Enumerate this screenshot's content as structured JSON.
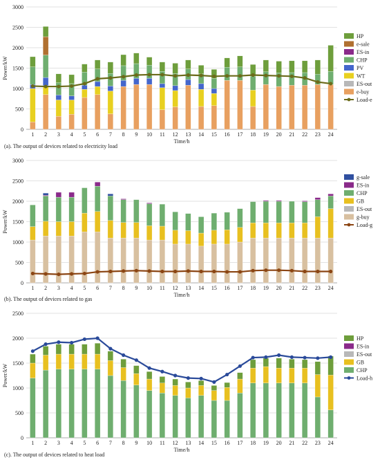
{
  "colors": {
    "HP": "#6e9e3c",
    "e-sale": "#b07030",
    "ES-in": "#8a2a8a",
    "CHP": "#6fae6f",
    "PV": "#4466cc",
    "WT": "#e8d020",
    "ES-out": "#b8b8b8",
    "e-buy": "#e8a060",
    "g-sale": "#3050a0",
    "GB": "#e8c020",
    "g-buy": "#d8c0a0",
    "load-e": "#6b6b1a",
    "load-g": "#8b4513",
    "load-h": "#2a4a9a"
  },
  "chart_data": [
    {
      "type": "bar",
      "caption": "(a). The output of devices related to electricity load",
      "xlabel": "Time/h",
      "ylabel": "Power/kW",
      "ylim": [
        0,
        3000
      ],
      "yticks": [
        0,
        500,
        1000,
        1500,
        2000,
        2500,
        3000
      ],
      "categories": [
        "1",
        "2",
        "3",
        "4",
        "5",
        "6",
        "7",
        "8",
        "9",
        "10",
        "11",
        "12",
        "13",
        "14",
        "15",
        "16",
        "17",
        "18",
        "19",
        "20",
        "21",
        "22",
        "23",
        "24"
      ],
      "legend_position": "right",
      "legend": [
        "HP",
        "e-sale",
        "ES-in",
        "CHP",
        "PV",
        "WT",
        "ES-out",
        "e-buy",
        "Load-e"
      ],
      "series": [
        {
          "name": "e-buy",
          "values": [
            180,
            850,
            320,
            370,
            780,
            850,
            380,
            1050,
            1100,
            1100,
            480,
            550,
            1080,
            560,
            580,
            1200,
            1200,
            560,
            1100,
            1050,
            1080,
            1080,
            1100,
            1100
          ]
        },
        {
          "name": "ES-out",
          "values": [
            0,
            0,
            0,
            0,
            0,
            0,
            0,
            0,
            0,
            0,
            0,
            0,
            0,
            0,
            0,
            0,
            0,
            0,
            0,
            0,
            0,
            0,
            0,
            0
          ]
        },
        {
          "name": "WT",
          "values": [
            820,
            220,
            400,
            350,
            200,
            200,
            560,
            0,
            0,
            0,
            540,
            400,
            0,
            420,
            300,
            0,
            0,
            400,
            0,
            0,
            0,
            0,
            0,
            0
          ]
        },
        {
          "name": "PV",
          "values": [
            100,
            200,
            120,
            100,
            100,
            120,
            120,
            150,
            150,
            150,
            100,
            120,
            140,
            140,
            120,
            0,
            0,
            0,
            0,
            0,
            0,
            0,
            0,
            0
          ]
        },
        {
          "name": "CHP",
          "values": [
            430,
            550,
            300,
            300,
            320,
            310,
            310,
            360,
            360,
            320,
            300,
            300,
            260,
            240,
            250,
            320,
            330,
            340,
            310,
            330,
            310,
            310,
            250,
            320
          ]
        },
        {
          "name": "ES-in",
          "values": [
            0,
            0,
            0,
            0,
            0,
            0,
            0,
            0,
            0,
            0,
            0,
            0,
            0,
            0,
            0,
            0,
            0,
            0,
            0,
            0,
            0,
            0,
            0,
            0
          ]
        },
        {
          "name": "e-sale",
          "values": [
            0,
            450,
            0,
            0,
            0,
            0,
            0,
            0,
            0,
            0,
            0,
            0,
            0,
            0,
            0,
            0,
            0,
            0,
            0,
            0,
            0,
            0,
            0,
            0
          ]
        },
        {
          "name": "HP",
          "values": [
            250,
            250,
            220,
            220,
            200,
            220,
            280,
            270,
            260,
            200,
            230,
            250,
            220,
            210,
            220,
            230,
            270,
            290,
            290,
            290,
            290,
            290,
            350,
            640
          ]
        }
      ],
      "line": {
        "name": "Load-e",
        "values": [
          1060,
          1050,
          1050,
          1060,
          1120,
          1240,
          1260,
          1290,
          1330,
          1340,
          1340,
          1310,
          1330,
          1320,
          1300,
          1310,
          1310,
          1330,
          1320,
          1310,
          1300,
          1260,
          1160,
          1120
        ]
      }
    },
    {
      "type": "bar",
      "caption": "(b). The output of devices related to gas",
      "xlabel": "Time/h",
      "ylabel": "Power/kW",
      "ylim": [
        0,
        3000
      ],
      "yticks": [
        0,
        500,
        1000,
        1500,
        2000,
        2500,
        3000
      ],
      "categories": [
        "1",
        "2",
        "3",
        "4",
        "5",
        "6",
        "7",
        "8",
        "9",
        "10",
        "11",
        "12",
        "13",
        "14",
        "15",
        "16",
        "17",
        "18",
        "19",
        "20",
        "21",
        "22",
        "23",
        "24"
      ],
      "legend_position": "right",
      "legend": [
        "g-sale",
        "ES-in",
        "CHP",
        "GB",
        "ES-out",
        "g-buy",
        "Load-g"
      ],
      "series": [
        {
          "name": "g-buy",
          "values": [
            1050,
            1150,
            1150,
            1150,
            1250,
            1250,
            1100,
            1100,
            1100,
            1050,
            1050,
            950,
            950,
            900,
            950,
            950,
            1000,
            1100,
            1100,
            1100,
            1100,
            1100,
            1100,
            1100
          ]
        },
        {
          "name": "ES-out",
          "values": [
            0,
            0,
            0,
            0,
            0,
            0,
            0,
            0,
            0,
            0,
            0,
            0,
            0,
            0,
            0,
            0,
            0,
            0,
            0,
            0,
            0,
            0,
            0,
            0
          ]
        },
        {
          "name": "GB",
          "values": [
            330,
            360,
            350,
            350,
            460,
            500,
            430,
            380,
            380,
            350,
            340,
            340,
            330,
            320,
            340,
            350,
            360,
            370,
            370,
            370,
            370,
            370,
            520,
            720
          ]
        },
        {
          "name": "CHP",
          "values": [
            530,
            620,
            600,
            600,
            620,
            620,
            600,
            560,
            560,
            540,
            540,
            450,
            420,
            400,
            420,
            430,
            460,
            520,
            530,
            530,
            530,
            520,
            420,
            310
          ]
        },
        {
          "name": "ES-in",
          "values": [
            0,
            20,
            120,
            120,
            0,
            100,
            0,
            20,
            0,
            20,
            0,
            0,
            0,
            0,
            0,
            0,
            0,
            0,
            20,
            20,
            0,
            20,
            50,
            50
          ]
        },
        {
          "name": "g-sale",
          "values": [
            0,
            50,
            0,
            0,
            0,
            0,
            50,
            0,
            0,
            0,
            0,
            0,
            0,
            0,
            0,
            0,
            0,
            0,
            0,
            0,
            0,
            0,
            0,
            0
          ]
        }
      ],
      "line": {
        "name": "Load-g",
        "values": [
          230,
          220,
          210,
          220,
          230,
          270,
          280,
          290,
          300,
          290,
          280,
          280,
          290,
          280,
          280,
          270,
          270,
          300,
          310,
          310,
          300,
          280,
          280,
          280
        ]
      }
    },
    {
      "type": "bar",
      "caption": "(c). The output of devices related to heat load",
      "xlabel": "Time/h",
      "ylabel": "Power/kW",
      "ylim": [
        0,
        2500
      ],
      "yticks": [
        0,
        500,
        1000,
        1500,
        2000,
        2500
      ],
      "categories": [
        "1",
        "2",
        "3",
        "4",
        "5",
        "6",
        "7",
        "8",
        "9",
        "10",
        "11",
        "12",
        "13",
        "14",
        "15",
        "16",
        "17",
        "18",
        "19",
        "20",
        "21",
        "22",
        "23",
        "24"
      ],
      "legend_position": "right",
      "legend": [
        "HP",
        "ES-in",
        "ES-out",
        "GB",
        "CHP",
        "Load-h"
      ],
      "series": [
        {
          "name": "CHP",
          "values": [
            1200,
            1360,
            1380,
            1380,
            1380,
            1380,
            1250,
            1150,
            1060,
            950,
            900,
            850,
            800,
            850,
            750,
            750,
            900,
            1100,
            1100,
            1100,
            1100,
            1100,
            820,
            560
          ]
        },
        {
          "name": "GB",
          "values": [
            300,
            300,
            300,
            300,
            300,
            300,
            300,
            260,
            230,
            230,
            200,
            200,
            200,
            200,
            200,
            260,
            280,
            300,
            330,
            300,
            300,
            300,
            450,
            700
          ]
        },
        {
          "name": "ES-out",
          "values": [
            0,
            0,
            0,
            0,
            0,
            0,
            0,
            0,
            0,
            0,
            0,
            0,
            0,
            0,
            0,
            0,
            0,
            0,
            0,
            0,
            0,
            0,
            0,
            0
          ]
        },
        {
          "name": "ES-in",
          "values": [
            0,
            0,
            0,
            0,
            0,
            0,
            0,
            0,
            0,
            0,
            0,
            0,
            0,
            0,
            0,
            0,
            0,
            0,
            0,
            0,
            0,
            0,
            0,
            0
          ]
        },
        {
          "name": "HP",
          "values": [
            180,
            180,
            200,
            200,
            200,
            220,
            190,
            170,
            160,
            150,
            130,
            130,
            120,
            100,
            100,
            100,
            130,
            170,
            170,
            200,
            180,
            170,
            260,
            380
          ]
        }
      ],
      "line": {
        "name": "Load-h",
        "values": [
          1740,
          1880,
          1920,
          1910,
          1980,
          2000,
          1790,
          1660,
          1560,
          1400,
          1330,
          1250,
          1200,
          1190,
          1120,
          1270,
          1440,
          1610,
          1620,
          1660,
          1620,
          1610,
          1600,
          1620
        ]
      }
    }
  ]
}
